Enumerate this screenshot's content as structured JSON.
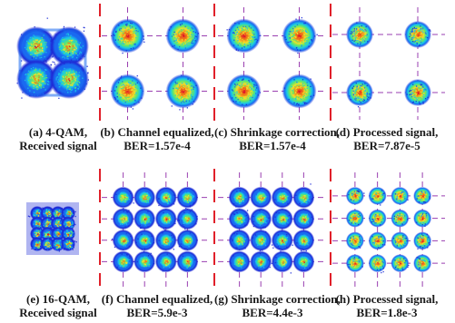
{
  "colors": {
    "background": "#ffffff",
    "guide_line": "#9a3fb0",
    "divider": "#e0202a",
    "colormap": [
      "#1d2bd6",
      "#1a6af0",
      "#19c8e8",
      "#5fe86a",
      "#f0e02a",
      "#f07a1a",
      "#e0102a"
    ]
  },
  "chart_data": [
    {
      "type": "scatter",
      "id": "a",
      "format": "4-QAM",
      "grid": 2,
      "stage": "received",
      "caption": [
        "(a) 4-QAM,",
        "Received signal"
      ]
    },
    {
      "type": "scatter",
      "id": "b",
      "format": "4-QAM",
      "grid": 2,
      "stage": "channel-equalized",
      "caption": [
        "(b) Channel equalized,",
        "BER=1.57e-4"
      ],
      "ber": "1.57e-4"
    },
    {
      "type": "scatter",
      "id": "c",
      "format": "4-QAM",
      "grid": 2,
      "stage": "shrinkage-correction",
      "caption": [
        "(c) Shrinkage correction,",
        "BER=1.57e-4"
      ],
      "ber": "1.57e-4"
    },
    {
      "type": "scatter",
      "id": "d",
      "format": "4-QAM",
      "grid": 2,
      "stage": "processed",
      "caption": [
        "(d) Processed signal,",
        "BER=7.87e-5"
      ],
      "ber": "7.87e-5"
    },
    {
      "type": "scatter",
      "id": "e",
      "format": "16-QAM",
      "grid": 4,
      "stage": "received",
      "caption": [
        "(e) 16-QAM,",
        "Received signal"
      ]
    },
    {
      "type": "scatter",
      "id": "f",
      "format": "16-QAM",
      "grid": 4,
      "stage": "channel-equalized",
      "caption": [
        "(f) Channel equalized,",
        "BER=5.9e-3"
      ],
      "ber": "5.9e-3"
    },
    {
      "type": "scatter",
      "id": "g",
      "format": "16-QAM",
      "grid": 4,
      "stage": "shrinkage-correction",
      "caption": [
        "(g) Shrinkage correction,",
        "BER=4.4e-3"
      ],
      "ber": "4.4e-3"
    },
    {
      "type": "scatter",
      "id": "h",
      "format": "16-QAM",
      "grid": 4,
      "stage": "processed",
      "caption": [
        "(h) Processed signal,",
        "BER=1.8e-3"
      ],
      "ber": "1.8e-3"
    }
  ]
}
